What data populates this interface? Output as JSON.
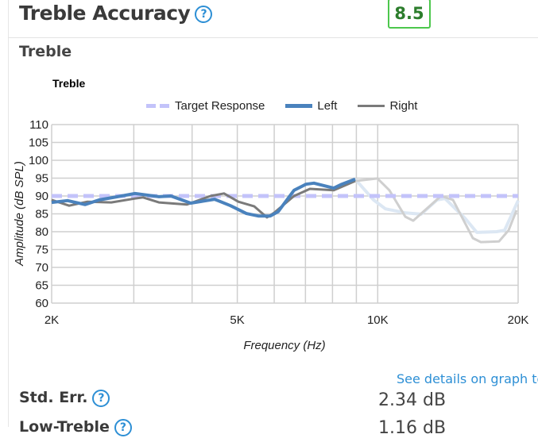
{
  "header": {
    "title": "Treble Accuracy",
    "help_glyph": "?",
    "score": "8.5",
    "score_color": "#4cc74c"
  },
  "section": {
    "subtitle": "Treble"
  },
  "chart_data": {
    "type": "line",
    "title": "Treble",
    "xlabel": "Frequency (Hz)",
    "ylabel": "Amplitude (dB SPL)",
    "xscale": "log",
    "xlim": [
      2000,
      20000
    ],
    "ylim": [
      60,
      110
    ],
    "yticks": [
      60,
      65,
      70,
      75,
      80,
      85,
      90,
      95,
      100,
      105,
      110
    ],
    "xtick_labels": [
      {
        "v": 2000,
        "t": "2K"
      },
      {
        "v": 5000,
        "t": "5K"
      },
      {
        "v": 10000,
        "t": "10K"
      },
      {
        "v": 20000,
        "t": "20K"
      }
    ],
    "xgrid": [
      2000,
      3000,
      4000,
      5000,
      6000,
      7000,
      8000,
      9000,
      10000,
      20000
    ],
    "grid": true,
    "legend_position": "top",
    "fade_above_hz": 8950,
    "series": [
      {
        "name": "Target Response",
        "color": "#c3c3fa",
        "style": "dashed",
        "points": [
          [
            2000,
            90
          ],
          [
            20000,
            90
          ]
        ]
      },
      {
        "name": "Left",
        "color": "#4a82bd",
        "faded_color": "#dce7f3",
        "style": "solid",
        "points": [
          [
            2000,
            88.2
          ],
          [
            2163,
            88.7
          ],
          [
            2358,
            87.6
          ],
          [
            2530,
            88.9
          ],
          [
            2770,
            89.8
          ],
          [
            3018,
            90.7
          ],
          [
            3396,
            89.8
          ],
          [
            3602,
            90
          ],
          [
            3974,
            88
          ],
          [
            4469,
            89.1
          ],
          [
            4834,
            87.3
          ],
          [
            5229,
            85.1
          ],
          [
            5546,
            84.4
          ],
          [
            5882,
            84.4
          ],
          [
            6117,
            85.6
          ],
          [
            6616,
            91.6
          ],
          [
            7017,
            93.3
          ],
          [
            7298,
            93.6
          ],
          [
            8050,
            92.2
          ],
          [
            8373,
            93.3
          ],
          [
            8950,
            94.7
          ],
          [
            9795,
            88.9
          ],
          [
            10390,
            86.4
          ],
          [
            11460,
            85.3
          ],
          [
            12394,
            84.9
          ],
          [
            13404,
            88.9
          ],
          [
            13940,
            89.3
          ],
          [
            15380,
            83.8
          ],
          [
            16310,
            79.8
          ],
          [
            17990,
            80
          ],
          [
            18708,
            80.4
          ],
          [
            20000,
            88.7
          ]
        ]
      },
      {
        "name": "Right",
        "color": "#7a7a7a",
        "faded_color": "#cfcfcf",
        "style": "solid",
        "points": [
          [
            2000,
            88.9
          ],
          [
            2180,
            87.3
          ],
          [
            2386,
            88.4
          ],
          [
            2684,
            88.2
          ],
          [
            3018,
            89.3
          ],
          [
            3140,
            89.6
          ],
          [
            3396,
            88.2
          ],
          [
            3896,
            87.6
          ],
          [
            4382,
            90
          ],
          [
            4684,
            90.7
          ],
          [
            5026,
            88.4
          ],
          [
            5439,
            87.1
          ],
          [
            5789,
            84
          ],
          [
            5998,
            85.3
          ],
          [
            6616,
            90
          ],
          [
            7157,
            92
          ],
          [
            8050,
            91.6
          ],
          [
            8950,
            94.2
          ],
          [
            9990,
            94.9
          ],
          [
            10594,
            91.6
          ],
          [
            11460,
            84.2
          ],
          [
            11917,
            83.1
          ],
          [
            13672,
            90
          ],
          [
            14500,
            88.9
          ],
          [
            15994,
            78.2
          ],
          [
            16636,
            77.1
          ],
          [
            18200,
            77.3
          ],
          [
            19082,
            80.4
          ],
          [
            19844,
            86
          ]
        ]
      }
    ]
  },
  "link": "See details on graph tool",
  "metrics": [
    {
      "label": "Std. Err.",
      "value": "2.34 dB"
    },
    {
      "label": "Low-Treble",
      "value": "1.16 dB"
    }
  ]
}
